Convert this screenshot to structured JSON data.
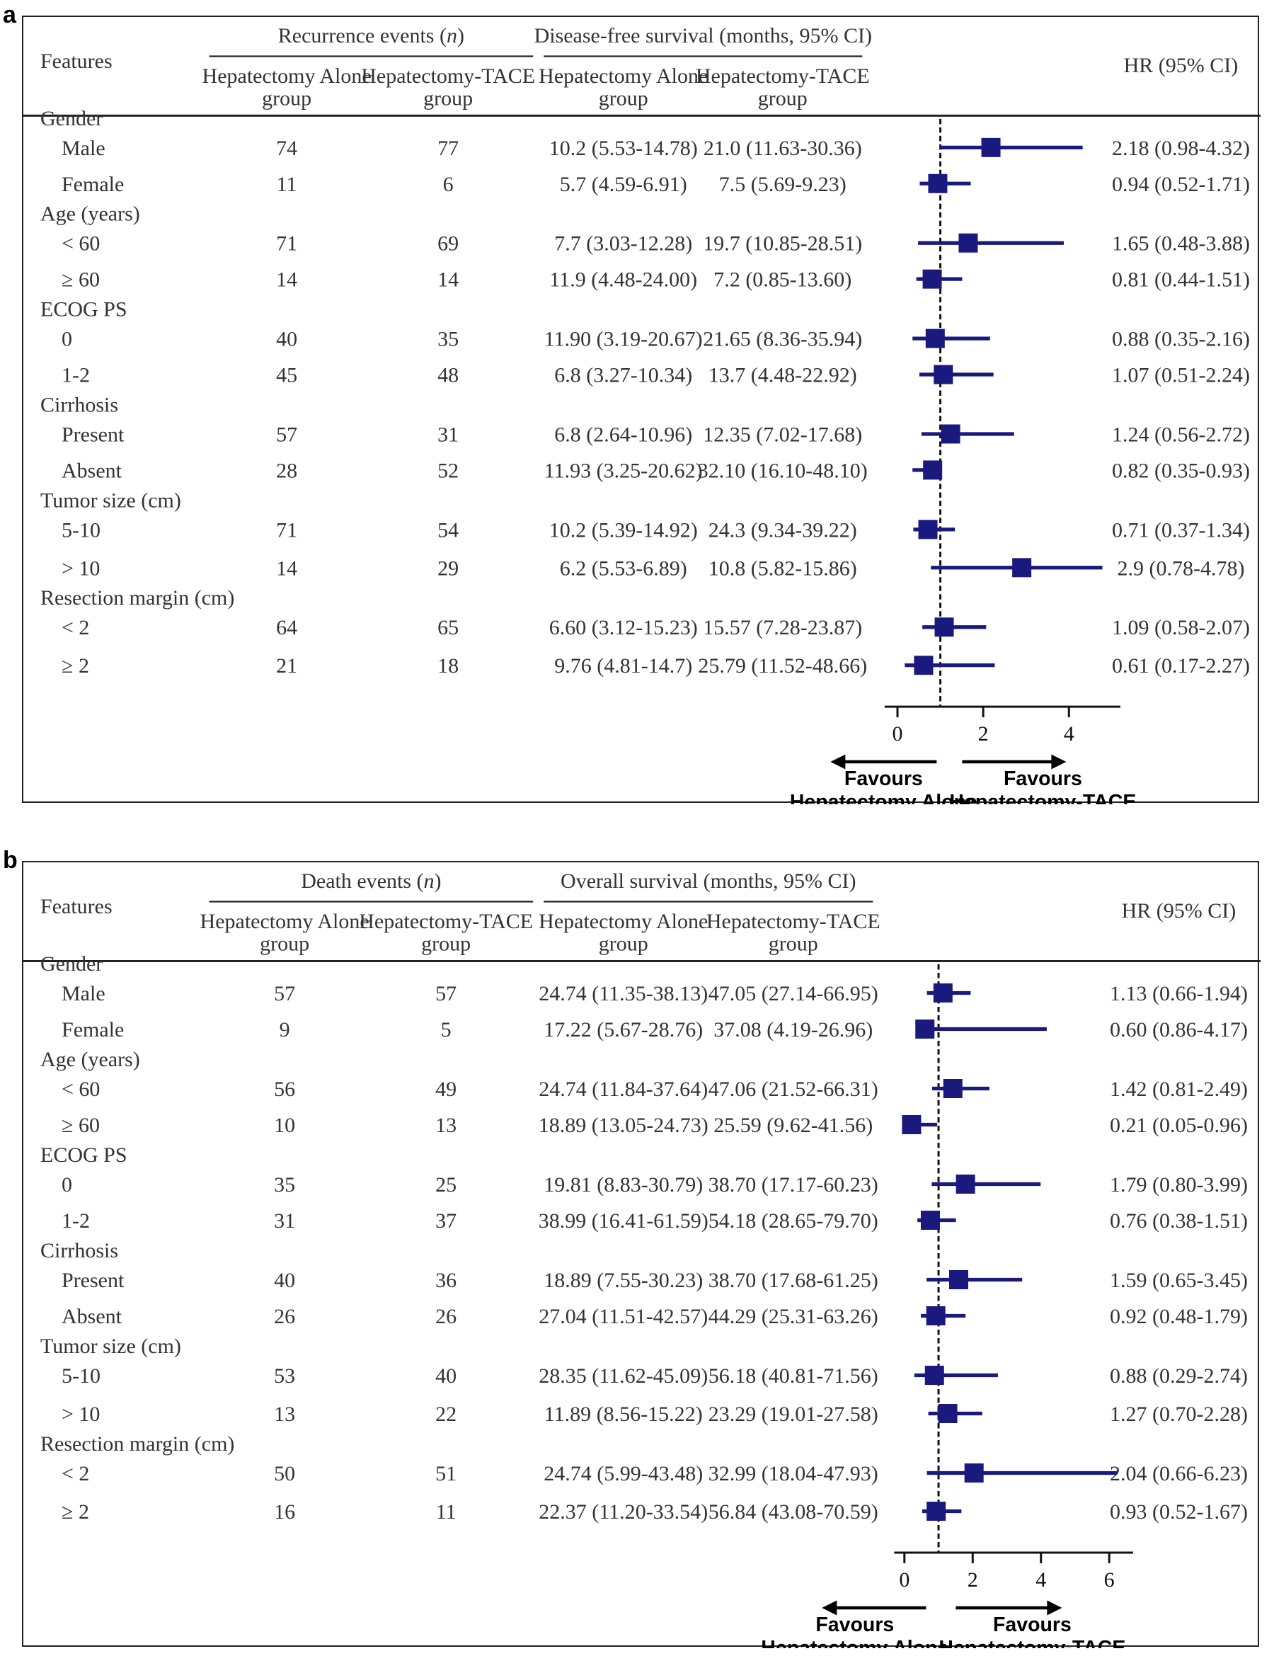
{
  "panels": [
    {
      "label": "a",
      "header": {
        "features": "Features",
        "events_group": "Recurrence events (",
        "events_n": "n",
        "events_close": ")",
        "survival_group": "Disease-free survival (months, 95% CI)",
        "col1_line1": "Hepatectomy Alone",
        "col1_line2": "group",
        "col2_line1": "Hepatectomy-TACE",
        "col2_line2": "group",
        "col3_line1": "Hepatectomy Alone",
        "col3_line2": "group",
        "col4_line1": "Hepatectomy-TACE",
        "col4_line2": "group",
        "hr": "HR (95% CI)"
      },
      "rows": [
        {
          "type": "cat",
          "label": "Gender"
        },
        {
          "type": "data",
          "label": "Male",
          "ev1": "74",
          "ev2": "77",
          "s1": "10.2 (5.53-14.78)",
          "s2": "21.0 (11.63-30.36)",
          "hr_text": "2.18 (0.98-4.32)"
        },
        {
          "type": "data",
          "label": "Female",
          "ev1": "11",
          "ev2": "6",
          "s1": "5.7 (4.59-6.91)",
          "s2": "7.5 (5.69-9.23)",
          "hr_text": "0.94 (0.52-1.71)"
        },
        {
          "type": "cat",
          "label": "Age (years)"
        },
        {
          "type": "data",
          "label": "< 60",
          "ev1": "71",
          "ev2": "69",
          "s1": "7.7 (3.03-12.28)",
          "s2": "19.7 (10.85-28.51)",
          "hr_text": "1.65 (0.48-3.88)"
        },
        {
          "type": "data",
          "label": "≥ 60",
          "ev1": "14",
          "ev2": "14",
          "s1": "11.9 (4.48-24.00)",
          "s2": "7.2 (0.85-13.60)",
          "hr_text": "0.81 (0.44-1.51)"
        },
        {
          "type": "cat",
          "label": "ECOG    PS"
        },
        {
          "type": "data",
          "label": "0",
          "ev1": "40",
          "ev2": "35",
          "s1": "11.90 (3.19-20.67)",
          "s2": "21.65 (8.36-35.94)",
          "hr_text": "0.88 (0.35-2.16)"
        },
        {
          "type": "data",
          "label": "1-2",
          "ev1": "45",
          "ev2": "48",
          "s1": "6.8 (3.27-10.34)",
          "s2": "13.7 (4.48-22.92)",
          "hr_text": "1.07 (0.51-2.24)"
        },
        {
          "type": "cat",
          "label": "Cirrhosis"
        },
        {
          "type": "data",
          "label": "Present",
          "ev1": "57",
          "ev2": "31",
          "s1": "6.8 (2.64-10.96)",
          "s2": "12.35 (7.02-17.68)",
          "hr_text": "1.24 (0.56-2.72)"
        },
        {
          "type": "data",
          "label": "Absent",
          "ev1": "28",
          "ev2": "52",
          "s1": "11.93 (3.25-20.62)",
          "s2": "32.10 (16.10-48.10)",
          "hr_text": "0.82 (0.35-0.93)"
        },
        {
          "type": "cat",
          "label": "Tumor size (cm)"
        },
        {
          "type": "data",
          "label": "5-10",
          "ev1": "71",
          "ev2": "54",
          "s1": "10.2 (5.39-14.92)",
          "s2": "24.3 (9.34-39.22)",
          "hr_text": "0.71 (0.37-1.34)"
        },
        {
          "type": "data",
          "label": "> 10",
          "ev1": "14",
          "ev2": "29",
          "s1": "6.2 (5.53-6.89)",
          "s2": "10.8 (5.82-15.86)",
          "hr_text": "2.9 (0.78-4.78)"
        },
        {
          "type": "cat",
          "label": "Resection margin (cm)"
        },
        {
          "type": "data",
          "label": "< 2",
          "ev1": "64",
          "ev2": "65",
          "s1": "6.60 (3.12-15.23)",
          "s2": "15.57 (7.28-23.87)",
          "hr_text": "1.09 (0.58-2.07)"
        },
        {
          "type": "data",
          "label": "≥ 2",
          "ev1": "21",
          "ev2": "18",
          "s1": "9.76 (4.81-14.7)",
          "s2": "25.79 (11.52-48.66)",
          "hr_text": "0.61 (0.17-2.27)"
        }
      ],
      "axis": {
        "ticks": [
          "0",
          "2",
          "4"
        ]
      },
      "favours_left": [
        "Favours",
        "Hepatectomy Alone"
      ],
      "favours_right": [
        "Favours",
        "Hepatectomy-TACE"
      ]
    },
    {
      "label": "b",
      "header": {
        "features": "Features",
        "events_group": "Death events (",
        "events_n": "n",
        "events_close": ")",
        "survival_group": "Overall survival (months, 95% CI)",
        "col1_line1": "Hepatectomy Alone",
        "col1_line2": "group",
        "col2_line1": "Hepatectomy-TACE",
        "col2_line2": "group",
        "col3_line1": "Hepatectomy Alone",
        "col3_line2": "group",
        "col4_line1": "Hepatectomy-TACE",
        "col4_line2": "group",
        "hr": "HR (95% CI)"
      },
      "rows": [
        {
          "type": "cat",
          "label": "Gender"
        },
        {
          "type": "data",
          "label": "Male",
          "ev1": "57",
          "ev2": "57",
          "s1": "24.74 (11.35-38.13)",
          "s2": "47.05 (27.14-66.95)",
          "hr_text": "1.13 (0.66-1.94)"
        },
        {
          "type": "data",
          "label": "Female",
          "ev1": "9",
          "ev2": "5",
          "s1": "17.22 (5.67-28.76)",
          "s2": "37.08 (4.19-26.96)",
          "hr_text": "0.60 (0.86-4.17)"
        },
        {
          "type": "cat",
          "label": "Age (years)"
        },
        {
          "type": "data",
          "label": "< 60",
          "ev1": "56",
          "ev2": "49",
          "s1": "24.74 (11.84-37.64)",
          "s2": "47.06 (21.52-66.31)",
          "hr_text": "1.42 (0.81-2.49)"
        },
        {
          "type": "data",
          "label": "≥ 60",
          "ev1": "10",
          "ev2": "13",
          "s1": "18.89 (13.05-24.73)",
          "s2": "25.59 (9.62-41.56)",
          "hr_text": "0.21 (0.05-0.96)"
        },
        {
          "type": "cat",
          "label": "ECOG    PS"
        },
        {
          "type": "data",
          "label": "0",
          "ev1": "35",
          "ev2": "25",
          "s1": "19.81 (8.83-30.79)",
          "s2": "38.70 (17.17-60.23)",
          "hr_text": "1.79 (0.80-3.99)"
        },
        {
          "type": "data",
          "label": "1-2",
          "ev1": "31",
          "ev2": "37",
          "s1": "38.99 (16.41-61.59)",
          "s2": "54.18 (28.65-79.70)",
          "hr_text": "0.76 (0.38-1.51)"
        },
        {
          "type": "cat",
          "label": "Cirrhosis"
        },
        {
          "type": "data",
          "label": "Present",
          "ev1": "40",
          "ev2": "36",
          "s1": "18.89 (7.55-30.23)",
          "s2": "38.70 (17.68-61.25)",
          "hr_text": "1.59 (0.65-3.45)"
        },
        {
          "type": "data",
          "label": "Absent",
          "ev1": "26",
          "ev2": "26",
          "s1": "27.04 (11.51-42.57)",
          "s2": "44.29 (25.31-63.26)",
          "hr_text": "0.92 (0.48-1.79)"
        },
        {
          "type": "cat",
          "label": "Tumor size (cm)"
        },
        {
          "type": "data",
          "label": "5-10",
          "ev1": "53",
          "ev2": "40",
          "s1": "28.35 (11.62-45.09)",
          "s2": "56.18 (40.81-71.56)",
          "hr_text": "0.88 (0.29-2.74)"
        },
        {
          "type": "data",
          "label": "> 10",
          "ev1": "13",
          "ev2": "22",
          "s1": "11.89 (8.56-15.22)",
          "s2": "23.29 (19.01-27.58)",
          "hr_text": "1.27 (0.70-2.28)"
        },
        {
          "type": "cat",
          "label": "Resection margin (cm)"
        },
        {
          "type": "data",
          "label": "< 2",
          "ev1": "50",
          "ev2": "51",
          "s1": "24.74 (5.99-43.48)",
          "s2": "32.99 (18.04-47.93)",
          "hr_text": "2.04 (0.66-6.23)"
        },
        {
          "type": "data",
          "label": "≥ 2",
          "ev1": "16",
          "ev2": "11",
          "s1": "22.37 (11.20-33.54)",
          "s2": "56.84 (43.08-70.59)",
          "hr_text": "0.93 (0.52-1.67)"
        }
      ],
      "axis": {
        "ticks": [
          "0",
          "2",
          "4",
          "6"
        ]
      },
      "favours_left": [
        "Favours",
        "Hepatectomy Alone"
      ],
      "favours_right": [
        "Favours",
        "Hepatectomy-TACE"
      ]
    }
  ],
  "chart_data": [
    {
      "type": "forest",
      "title": "",
      "xlabel": "",
      "reference_line": 1,
      "xlim": [
        -0.3,
        5.2
      ],
      "xticks": [
        0,
        2,
        4
      ],
      "marker_color": "#1a1a7e",
      "categories": [
        "Male",
        "Female",
        "< 60",
        "≥ 60",
        "0",
        "1-2",
        "Present",
        "Absent",
        "5-10",
        "> 10",
        "< 2",
        "≥ 2"
      ],
      "hr": [
        2.18,
        0.94,
        1.65,
        0.81,
        0.88,
        1.07,
        1.24,
        0.82,
        0.71,
        2.9,
        1.09,
        0.61
      ],
      "lower": [
        0.98,
        0.52,
        0.48,
        0.44,
        0.35,
        0.51,
        0.56,
        0.35,
        0.37,
        0.78,
        0.58,
        0.17
      ],
      "upper": [
        4.32,
        1.71,
        3.88,
        1.51,
        2.16,
        2.24,
        2.72,
        0.93,
        1.34,
        4.78,
        2.07,
        2.27
      ]
    },
    {
      "type": "forest",
      "title": "",
      "xlabel": "",
      "reference_line": 1,
      "xlim": [
        -0.3,
        6.7
      ],
      "xticks": [
        0,
        2,
        4,
        6
      ],
      "marker_color": "#1a1a7e",
      "categories": [
        "Male",
        "Female",
        "< 60",
        "≥ 60",
        "0",
        "1-2",
        "Present",
        "Absent",
        "5-10",
        "> 10",
        "< 2",
        "≥ 2"
      ],
      "hr": [
        1.13,
        0.6,
        1.42,
        0.21,
        1.79,
        0.76,
        1.59,
        0.92,
        0.88,
        1.27,
        2.04,
        0.93
      ],
      "lower": [
        0.66,
        0.86,
        0.81,
        0.05,
        0.8,
        0.38,
        0.65,
        0.48,
        0.29,
        0.7,
        0.66,
        0.52
      ],
      "upper": [
        1.94,
        4.17,
        2.49,
        0.96,
        3.99,
        1.51,
        3.45,
        1.79,
        2.74,
        2.28,
        6.23,
        1.67
      ]
    }
  ]
}
